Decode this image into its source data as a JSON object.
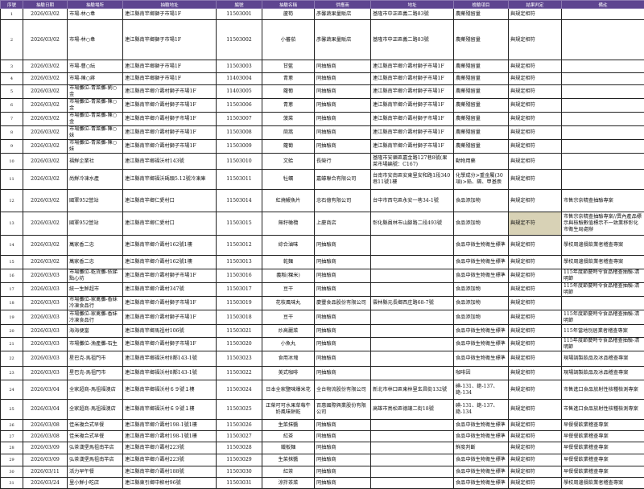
{
  "headers": [
    "序號",
    "抽驗日期",
    "抽驗場所",
    "抽驗地址",
    "編號",
    "抽驗名稱",
    "供應商",
    "地址",
    "檢驗項目",
    "結果判定",
    "備註"
  ],
  "highlight_color": "#d8d2b6",
  "header_color": "#5e4590",
  "rows": [
    [
      "1",
      "2026/03/02",
      "市場-林○韋",
      "連江縣南竿鄉獅子市場1F",
      "11503001",
      "蘆筍",
      "彥馨蔬果量販店",
      "基隆市中正區義二路83號",
      "農藥殘留量",
      "與規定相符",
      ""
    ],
    [
      "2",
      "2026/03/02",
      "市場-林○韋",
      "連江縣南竿鄉獅子市場1F",
      "11503002",
      "小蕃茄",
      "彥馨蔬果量販店",
      "基隆市中正區義二路83號",
      "農藥殘留量",
      "與規定相符",
      ""
    ],
    [
      "3",
      "2026/03/02",
      "市場-曹○紜",
      "連江縣南竿鄉獅子市場1F",
      "11503003",
      "甘藍",
      "同抽驗商",
      "連江縣南竿鄉介壽村獅子市場1F",
      "農藥殘留量",
      "與規定相符",
      ""
    ],
    [
      "4",
      "2026/03/02",
      "市場-陳○蔣",
      "連江縣南竿鄉獅子市場1F",
      "11403004",
      "青蔥",
      "同抽驗商",
      "連江縣南竿鄉介壽村獅子市場1F",
      "農藥殘留量",
      "與規定相符",
      ""
    ],
    [
      "5",
      "2026/03/02",
      "市場攤位-青菜攤-劉○金",
      "連江縣南竿鄉介壽村獅子市場1F",
      "11403005",
      "蘿蔔",
      "同抽驗商",
      "連江縣南竿鄉介壽村獅子市場1F",
      "農藥殘留量",
      "與規定相符",
      ""
    ],
    [
      "6",
      "2026/03/02",
      "市場攤位-青菜攤-陳○金",
      "連江縣南竿鄉介壽村獅子市場1F",
      "11503006",
      "青蔥",
      "同抽驗商",
      "連江縣南竿鄉介壽村獅子市場1F",
      "農藥殘留量",
      "與規定相符",
      ""
    ],
    [
      "7",
      "2026/03/02",
      "市場攤位-青菜攤-陳○金",
      "連江縣南竿鄉介壽村獅子市場1F",
      "11503007",
      "菠菜",
      "同抽驗商",
      "連江縣南竿鄉介壽村獅子市場1F",
      "農藥殘留量",
      "與規定相符",
      ""
    ],
    [
      "8",
      "2026/03/02",
      "市場攤位-青菜攤-陳○妹",
      "連江縣南竿鄉介壽村獅子市場1F",
      "11503008",
      "茼蒿",
      "同抽驗商",
      "連江縣南竿鄉介壽村獅子市場1F",
      "農藥殘留量",
      "與規定相符",
      ""
    ],
    [
      "9",
      "2026/03/02",
      "市場攤位-青菜攤-陳○妹",
      "連江縣南竿鄉介壽村獅子市場1F",
      "11503009",
      "蘿蔔",
      "同抽驗商",
      "連江縣南竿鄉介壽村獅子市場1F",
      "農藥殘留量",
      "與規定相符",
      ""
    ],
    [
      "10",
      "2026/03/02",
      "福鮮企業社",
      "連江縣南竿鄉福沃村143號",
      "11503010",
      "文蛤",
      "長榮行",
      "基隆市安樂區嘉金路127巷8號(果菜市場編號：C167)",
      "動物用藥",
      "與規定相符",
      ""
    ],
    [
      "11",
      "2026/03/02",
      "尚鮮冷凍水產",
      "連江縣南竿鄉福沃碼頭5.12號冷凍庫",
      "11503011",
      "牡蠣",
      "嘉蠔聯合有限公司",
      "台南市安南區安東里安和路1段340巷11號1樓",
      "化學成分>重金屬(30項)>鉛、鎘、甲基汞",
      "與規定相符",
      ""
    ],
    [
      "12",
      "2026/03/02",
      "國軍952營站",
      "連江縣南竿鄉仁愛村口",
      "11503014",
      "紅燒鰻魚片",
      "忠石億有限公司",
      "台中市西屯區永安一巷34-1號",
      "食品添加物",
      "與規定相符",
      "市售宗奈精查抽驗專案"
    ],
    [
      "13",
      "2026/03/02",
      "國軍952營站",
      "連江縣南竿鄉仁愛村口",
      "11503015",
      "無籽橄欖",
      "上慶商店",
      "彰化縣員林市山腳路二段493號",
      "食品添加物",
      "與規定不符",
      "市售宗奈精查抽驗專案//異內產品標示與檢驗數值標示不一致業移彰化市衛生局處辦"
    ],
    [
      "14",
      "2026/03/02",
      "萬家香二忠",
      "連江縣南竿鄉介壽村162號1樓",
      "11503012",
      "綜合滷味",
      "同抽驗商",
      "",
      "食品中微生物衛生標準",
      "與規定相符",
      "學校周邊餐飲業者稽查專案"
    ],
    [
      "15",
      "2026/03/02",
      "萬家香二忠",
      "連江縣南竿鄉介壽村162號1樓",
      "11503013",
      "乾麵",
      "同抽驗商",
      "",
      "食品中微生物衛生標準",
      "與規定相符",
      "學校周邊餐飲業者稽查專案"
    ],
    [
      "16",
      "2026/03/03",
      "市場攤位-乾貨攤-依娣點心坊",
      "連江縣南竿鄉介壽村獅子市場1F",
      "11503016",
      "義粄(粿米)",
      "同抽驗商",
      "",
      "食品中微生物衛生標準",
      "與規定相符",
      "115年度節慶時令食品稽查抽驗-清明節"
    ],
    [
      "17",
      "2026/03/03",
      "統一生鮮超市",
      "連江縣南竿鄉介壽村347號",
      "11503017",
      "豆干",
      "同抽驗商",
      "",
      "食品添加物",
      "與規定相符",
      "115年度節慶時令食品稽查抽驗-清明節"
    ],
    [
      "18",
      "2026/03/03",
      "市場攤位-家禽攤-香妹冷凍食品行",
      "連江縣南竿鄉介壽村獅子市場1F",
      "11503019",
      "花枝風味丸",
      "慶豐食品股份有限公司",
      "雲林縣元長鄉西庄路68-7號",
      "食品添加物",
      "與規定相符",
      ""
    ],
    [
      "19",
      "2026/03/03",
      "市場攤位-家禽攤-香妹冷凍食品行",
      "連江縣南竿鄉介壽村獅子市場1F",
      "11503018",
      "豆干",
      "同抽驗商",
      "",
      "食品添加物",
      "與規定相符",
      "115年度節慶時令食品稽查抽驗-清明節"
    ],
    [
      "20",
      "2026/03/03",
      "海海便當",
      "連江縣南竿鄉馬祖村106號",
      "11503021",
      "炒高麗菜",
      "同抽驗商",
      "",
      "食品中微生物衛生標準",
      "與規定相符",
      "115年當地別居業者稽查專案"
    ],
    [
      "21",
      "2026/03/03",
      "市場攤位-漁產攤-石生",
      "連江縣南竿鄉介壽村獅子市場1F",
      "11503020",
      "小魚丸",
      "同抽驗商",
      "",
      "食品中微生物衛生標準",
      "與規定相符",
      "115年度節慶時令食品稽查抽驗-清明節"
    ],
    [
      "22",
      "2026/03/03",
      "星巴克-馬祖門市",
      "連江縣南竿鄉福沃村8鄰143-1號",
      "11503023",
      "食用冰塊",
      "同抽驗商",
      "",
      "食品中微生物衛生標準",
      "與規定相符",
      "現場調製飲品及冰品稽查專案"
    ],
    [
      "23",
      "2026/03/03",
      "星巴克-馬祖門市",
      "連江縣南竿鄉福沃村8鄰143-1號",
      "11503022",
      "美式咖啡",
      "同抽驗商",
      "",
      "咖啡因",
      "與規定相符",
      "現場調製飲品及冰品稽查專案"
    ],
    [
      "24",
      "2026/03/04",
      "全家超商-馬祖福澳店",
      "連江縣南竿鄉福沃村６９號１樓",
      "11503024",
      "日本全家鹽味爆米花",
      "全台物流股份有限公司",
      "新北市林口區東林里玄昌街132號",
      "碘-131、銫-137、銫-134",
      "與規定相符",
      "市售進口食品放射性核種檢測專案"
    ],
    [
      "25",
      "2026/03/04",
      "全家超商-馬祖福澳店",
      "連江縣南竿鄉福沃村６９號１樓",
      "11503025",
      "正榮可可水果草莓牛奶風味餅乾",
      "百惠國際興業股份有限公司",
      "高雄市鳥松區德讓二街18號",
      "碘-131、銫-137、銫-134",
      "與規定相符",
      "市售進口食品放射性核種檢測專案"
    ],
    [
      "26",
      "2026/03/08",
      "佳米複合式早餐",
      "連江縣南竿鄉介壽村198-1號1樓",
      "11503026",
      "生菜抹醬",
      "同抽驗商",
      "",
      "食品中微生物衛生標準",
      "與規定相符",
      "早餐餐飲業稽查專案"
    ],
    [
      "27",
      "2026/03/08",
      "佳米複合式早餐",
      "連江縣南竿鄉介壽村198-1號1樓",
      "11503027",
      "紅茶",
      "同抽驗商",
      "",
      "食品中微生物衛生標準",
      "與規定相符",
      "早餐餐飲業稽查專案"
    ],
    [
      "28",
      "2026/03/09",
      "弘茶漢堡馬祖南竿店",
      "連江縣南竿鄉介壽村223號",
      "11503028",
      "鐵板麵",
      "同抽驗商",
      "",
      "鮮度判斷",
      "與規定相符",
      "早餐餐飲業稽查專案"
    ],
    [
      "29",
      "2026/03/09",
      "弘茶漢堡馬祖南竿店",
      "連江縣南竿鄉介壽村223號",
      "11503029",
      "生菜抹醬",
      "同抽驗商",
      "",
      "食品中微生物衛生標準",
      "與規定相符",
      "早餐餐飲業稽查專案"
    ],
    [
      "30",
      "2026/03/11",
      "活力早午餐",
      "連江縣南竿鄉介壽村188號",
      "11503030",
      "紅茶",
      "同抽驗商",
      "",
      "食品中微生物衛生標準",
      "與規定相符",
      "早餐餐飲業稽查專案"
    ],
    [
      "31",
      "2026/03/24",
      "里小鮮小吃店",
      "連江縣東引鄉中柳村96號",
      "11503031",
      "涼拌茶菜",
      "同抽驗商",
      "",
      "食品中微生物衛生標準",
      "與規定相符",
      "學校周邊餐飲業者稽查專案"
    ]
  ]
}
